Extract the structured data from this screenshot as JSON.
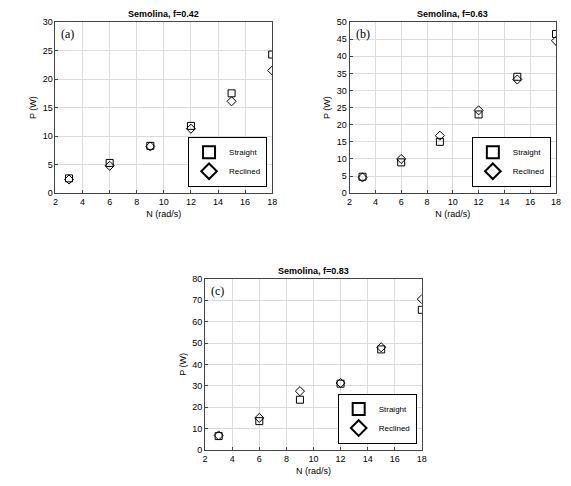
{
  "chart_data": [
    {
      "type": "scatter",
      "title": "Semolina, f=0.42",
      "annotations": [
        "(a)"
      ],
      "x_label": "N (rad/s)",
      "y_label": "P (W)",
      "x": [
        3,
        6,
        9,
        12,
        15,
        18
      ],
      "series": [
        {
          "name": "Straight",
          "color": "#000000",
          "marker": "square",
          "values": [
            2.6,
            5.3,
            8.3,
            11.8,
            17.5,
            24.3
          ]
        },
        {
          "name": "Reclined",
          "color": "#000000",
          "marker": "diamond",
          "values": [
            2.4,
            4.8,
            8.2,
            11.3,
            16.1,
            21.5
          ]
        }
      ],
      "xlim": [
        2,
        18
      ],
      "xticks": [
        2,
        4,
        6,
        8,
        10,
        12,
        14,
        16,
        18
      ],
      "ylim": [
        0,
        30
      ],
      "yticks": [
        0,
        5,
        10,
        15,
        20,
        25,
        30
      ],
      "grid": true,
      "legend": "lower right"
    },
    {
      "type": "scatter",
      "title": "Semolina, f=0.63",
      "annotations": [
        "(b)"
      ],
      "x_label": "N (rad/s)",
      "y_label": "P (W)",
      "x": [
        3,
        6,
        9,
        12,
        15,
        18
      ],
      "series": [
        {
          "name": "Straight",
          "color": "#000000",
          "marker": "square",
          "values": [
            4.8,
            9,
            15,
            23,
            34,
            46.5
          ]
        },
        {
          "name": "Reclined",
          "color": "#000000",
          "marker": "diamond",
          "values": [
            4.6,
            10,
            16.8,
            24.2,
            33.2,
            44.5
          ]
        }
      ],
      "xlim": [
        2,
        18
      ],
      "xticks": [
        2,
        4,
        6,
        8,
        10,
        12,
        14,
        16,
        18
      ],
      "ylim": [
        0,
        50
      ],
      "yticks": [
        0,
        5,
        10,
        15,
        20,
        25,
        30,
        35,
        40,
        45,
        50
      ],
      "grid": true,
      "legend": "lower right"
    },
    {
      "type": "scatter",
      "title": "Semolina, f=0.83",
      "annotations": [
        "(c)"
      ],
      "x_label": "N (rad/s)",
      "y_label": "P (W)",
      "x": [
        3,
        6,
        9,
        12,
        15,
        18
      ],
      "series": [
        {
          "name": "Straight",
          "color": "#000000",
          "marker": "square",
          "values": [
            6.5,
            13.5,
            23.5,
            31,
            47,
            65.5
          ]
        },
        {
          "name": "Reclined",
          "color": "#000000",
          "marker": "diamond",
          "values": [
            6.8,
            15,
            27.5,
            31.3,
            48,
            70.5
          ]
        }
      ],
      "xlim": [
        2,
        18
      ],
      "xticks": [
        2,
        4,
        6,
        8,
        10,
        12,
        14,
        16,
        18
      ],
      "ylim": [
        0,
        80
      ],
      "yticks": [
        0,
        10,
        20,
        30,
        40,
        50,
        60,
        70,
        80
      ],
      "grid": true,
      "legend": "lower right"
    }
  ]
}
